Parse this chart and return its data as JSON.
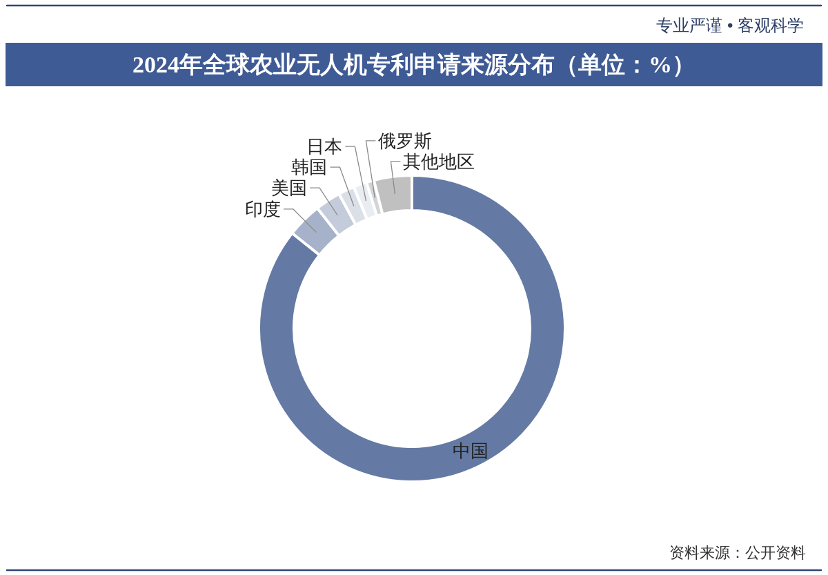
{
  "chart_data": {
    "type": "donut",
    "title": "2024年全球农业无人机专利申请来源分布（单位：%）",
    "categories": [
      "中国",
      "印度",
      "美国",
      "韩国",
      "日本",
      "俄罗斯",
      "其他地区"
    ],
    "values": [
      85.7,
      3.7,
      2.7,
      1.7,
      1.4,
      0.8,
      4.0
    ],
    "colors": [
      "#647aa4",
      "#a5b2ca",
      "#c4ccdb",
      "#dadfe8",
      "#e9ecf1",
      "#d3d4d8",
      "#c0c0c0"
    ],
    "annotations": [
      "专业严谨 • 客观科学",
      "资料来源：公开资料"
    ]
  }
}
